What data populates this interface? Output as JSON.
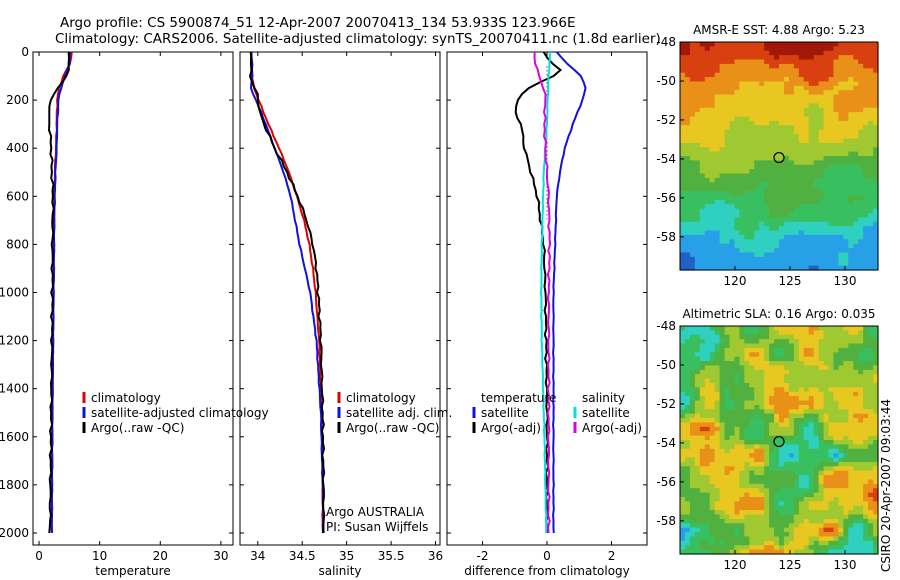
{
  "figure": {
    "title_line1": "Argo profile: CS 5900874_51 12-Apr-2007 20070413_134 53.933S 123.966E",
    "title_line2": "Climatology: CARS2006. Satellite-adjusted climatology: synTS_20070411.nc (1.8d earlier)",
    "side_stamp": "CSIRO 20-Apr-2007 09:03:44"
  },
  "colors": {
    "climatology": "#e00000",
    "satellite": "#1010e0",
    "argo": "#000000",
    "cyan": "#00e0e0",
    "magenta": "#e000e0"
  },
  "chart_data": [
    {
      "id": "temperature",
      "type": "line",
      "xlabel": "temperature",
      "ylabel": "",
      "xlim": [
        -1,
        32
      ],
      "ylim": [
        2050,
        0
      ],
      "xticks": [
        "0",
        "10",
        "20",
        "30"
      ],
      "xtick_values": [
        0,
        10,
        20,
        30
      ],
      "yticks": [
        "0",
        "200",
        "400",
        "600",
        "800",
        "1000",
        "1200",
        "1400",
        "1600",
        "1800",
        "2000"
      ],
      "ytick_values": [
        0,
        200,
        400,
        600,
        800,
        1000,
        1200,
        1400,
        1600,
        1800,
        2000
      ],
      "legend": [
        "climatology",
        "satellite-adjusted climatology",
        "Argo(..raw -QC)"
      ],
      "series": [
        {
          "name": "climatology",
          "color_key": "climatology",
          "depth": [
            0,
            50,
            100,
            150,
            200,
            300,
            400,
            500,
            700,
            1000,
            1500,
            2000
          ],
          "values": [
            5.4,
            5.1,
            4.0,
            3.3,
            3.0,
            2.9,
            2.8,
            2.6,
            2.5,
            2.4,
            2.2,
            2.1
          ]
        },
        {
          "name": "satellite-adjusted climatology",
          "color_key": "satellite",
          "depth": [
            0,
            50,
            100,
            150,
            200,
            300,
            400,
            500,
            700,
            1000,
            1500,
            2000
          ],
          "values": [
            5.2,
            5.0,
            4.3,
            3.6,
            3.2,
            3.0,
            2.9,
            2.7,
            2.5,
            2.4,
            2.2,
            2.1
          ]
        },
        {
          "name": "Argo(..raw -QC)",
          "color_key": "argo",
          "depth": [
            0,
            50,
            100,
            140,
            160,
            200,
            250,
            300,
            400,
            500,
            600,
            800,
            1000,
            1500,
            2000
          ],
          "values": [
            5.0,
            4.9,
            4.6,
            3.5,
            2.6,
            2.0,
            1.6,
            1.7,
            2.0,
            2.1,
            2.3,
            2.2,
            2.2,
            2.0,
            1.8
          ]
        }
      ]
    },
    {
      "id": "salinity",
      "type": "line",
      "xlabel": "salinity",
      "ylabel": "",
      "xlim": [
        33.8,
        36.05
      ],
      "ylim": [
        2050,
        0
      ],
      "xticks": [
        "34",
        "34.5",
        "35",
        "35.5",
        "36"
      ],
      "xtick_values": [
        34,
        34.5,
        35,
        35.5,
        36
      ],
      "legend": [
        "climatology",
        "satellite adj. clim.",
        "Argo(..raw -QC)"
      ],
      "annotation_lines": [
        "Argo AUSTRALIA",
        "PI: Susan Wijffels"
      ],
      "series": [
        {
          "name": "climatology",
          "color_key": "climatology",
          "depth": [
            0,
            100,
            150,
            200,
            300,
            400,
            500,
            600,
            700,
            800,
            900,
            1000,
            1200,
            1500,
            1800,
            2000
          ],
          "values": [
            33.92,
            33.93,
            33.96,
            34.01,
            34.12,
            34.24,
            34.35,
            34.44,
            34.52,
            34.58,
            34.62,
            34.65,
            34.69,
            34.72,
            34.73,
            34.73
          ]
        },
        {
          "name": "satellite adj. clim.",
          "color_key": "satellite",
          "depth": [
            0,
            100,
            150,
            200,
            300,
            400,
            500,
            600,
            700,
            800,
            900,
            1000,
            1200,
            1500,
            1800,
            2000
          ],
          "values": [
            33.93,
            33.94,
            33.92,
            33.98,
            34.09,
            34.19,
            34.29,
            34.37,
            34.42,
            34.47,
            34.53,
            34.59,
            34.66,
            34.71,
            34.73,
            34.74
          ]
        },
        {
          "name": "Argo(..raw -QC)",
          "color_key": "argo",
          "depth": [
            0,
            100,
            140,
            180,
            250,
            300,
            400,
            500,
            600,
            700,
            800,
            900,
            1000,
            1200,
            1500,
            1800,
            2000
          ],
          "values": [
            33.93,
            33.92,
            33.95,
            34.0,
            34.02,
            34.07,
            34.19,
            34.33,
            34.45,
            34.55,
            34.62,
            34.66,
            34.68,
            34.71,
            34.73,
            34.74,
            34.74
          ]
        }
      ]
    },
    {
      "id": "difference",
      "type": "line",
      "xlabel": "difference from climatology",
      "ylabel": "",
      "xlim": [
        -3.1,
        3.1
      ],
      "ylim": [
        2050,
        0
      ],
      "xticks": [
        "-2",
        "0",
        "2"
      ],
      "xtick_values": [
        -2,
        0,
        2
      ],
      "legend_temperature_header": "temperature",
      "legend_salinity_header": "salinity",
      "legend": [
        "satellite",
        "Argo(-adj)",
        "satellite",
        "Argo(-adj)"
      ],
      "series": [
        {
          "name": "temperature satellite",
          "color_key": "satellite",
          "depth": [
            0,
            40,
            80,
            100,
            150,
            200,
            250,
            300,
            400,
            500,
            600,
            800,
            1000,
            1500,
            2000
          ],
          "values": [
            0.3,
            0.55,
            0.9,
            1.05,
            1.2,
            1.1,
            0.95,
            0.8,
            0.55,
            0.4,
            0.3,
            0.25,
            0.2,
            0.2,
            0.2
          ]
        },
        {
          "name": "temperature Argo(-adj)",
          "color_key": "argo",
          "depth": [
            0,
            50,
            80,
            100,
            150,
            200,
            250,
            300,
            400,
            500,
            600,
            700,
            800,
            1000,
            1500,
            2000
          ],
          "values": [
            -0.1,
            0.15,
            0.5,
            0.2,
            -0.6,
            -0.9,
            -1.0,
            -0.8,
            -0.7,
            -0.5,
            -0.3,
            -0.2,
            -0.1,
            -0.05,
            0.0,
            0.0
          ]
        },
        {
          "name": "salinity satellite",
          "color_key": "cyan",
          "depth": [
            0,
            100,
            200,
            300,
            400,
            500,
            600,
            800,
            1000,
            1200,
            1400,
            1600,
            1800,
            2000
          ],
          "values": [
            0.1,
            0.05,
            0.02,
            0.0,
            -0.05,
            -0.1,
            -0.12,
            -0.16,
            -0.18,
            -0.16,
            -0.12,
            -0.08,
            -0.05,
            -0.02
          ]
        },
        {
          "name": "salinity Argo(-adj)",
          "color_key": "magenta",
          "depth": [
            0,
            50,
            100,
            150,
            200,
            300,
            400,
            500,
            600,
            800,
            1000,
            1500,
            2000
          ],
          "values": [
            -0.4,
            -0.35,
            -0.25,
            -0.1,
            -0.05,
            -0.08,
            -0.05,
            0.0,
            0.05,
            0.08,
            0.05,
            0.05,
            0.05
          ]
        }
      ]
    },
    {
      "id": "sst_map",
      "type": "heatmap",
      "title": "AMSR-E SST: 4.88 Argo: 5.23",
      "xlim": [
        115,
        133
      ],
      "ylim": [
        -59.7,
        -48
      ],
      "xticks": [
        "120",
        "125",
        "130"
      ],
      "xtick_values": [
        120,
        125,
        130
      ],
      "yticks": [
        "-48",
        "-50",
        "-52",
        "-54",
        "-56",
        "-58"
      ],
      "ytick_values": [
        -48,
        -50,
        -52,
        -54,
        -56,
        -58
      ],
      "marker": {
        "lon": 124.0,
        "lat": -53.93
      },
      "colorscale": [
        "#2060c8",
        "#28a0e8",
        "#30d0c0",
        "#38c060",
        "#50b040",
        "#a0c830",
        "#e8c820",
        "#e89018",
        "#d84010",
        "#a01808"
      ],
      "gradient_note": "warmer north (top), cooler south (bottom)"
    },
    {
      "id": "sla_map",
      "type": "heatmap",
      "title": "Altimetric SLA: 0.16 Argo: 0.035",
      "xlim": [
        115,
        133
      ],
      "ylim": [
        -59.7,
        -48
      ],
      "xticks": [
        "120",
        "125",
        "130"
      ],
      "xtick_values": [
        120,
        125,
        130
      ],
      "yticks": [
        "-48",
        "-50",
        "-52",
        "-54",
        "-56",
        "-58"
      ],
      "ytick_values": [
        -48,
        -50,
        -52,
        -54,
        -56,
        -58
      ],
      "marker": {
        "lon": 124.0,
        "lat": -53.93
      },
      "colorscale": [
        "#2060c8",
        "#28a0e8",
        "#30d0c0",
        "#38c060",
        "#50b040",
        "#a0c830",
        "#e8c820",
        "#e89018",
        "#d84010",
        "#a01808"
      ]
    }
  ]
}
